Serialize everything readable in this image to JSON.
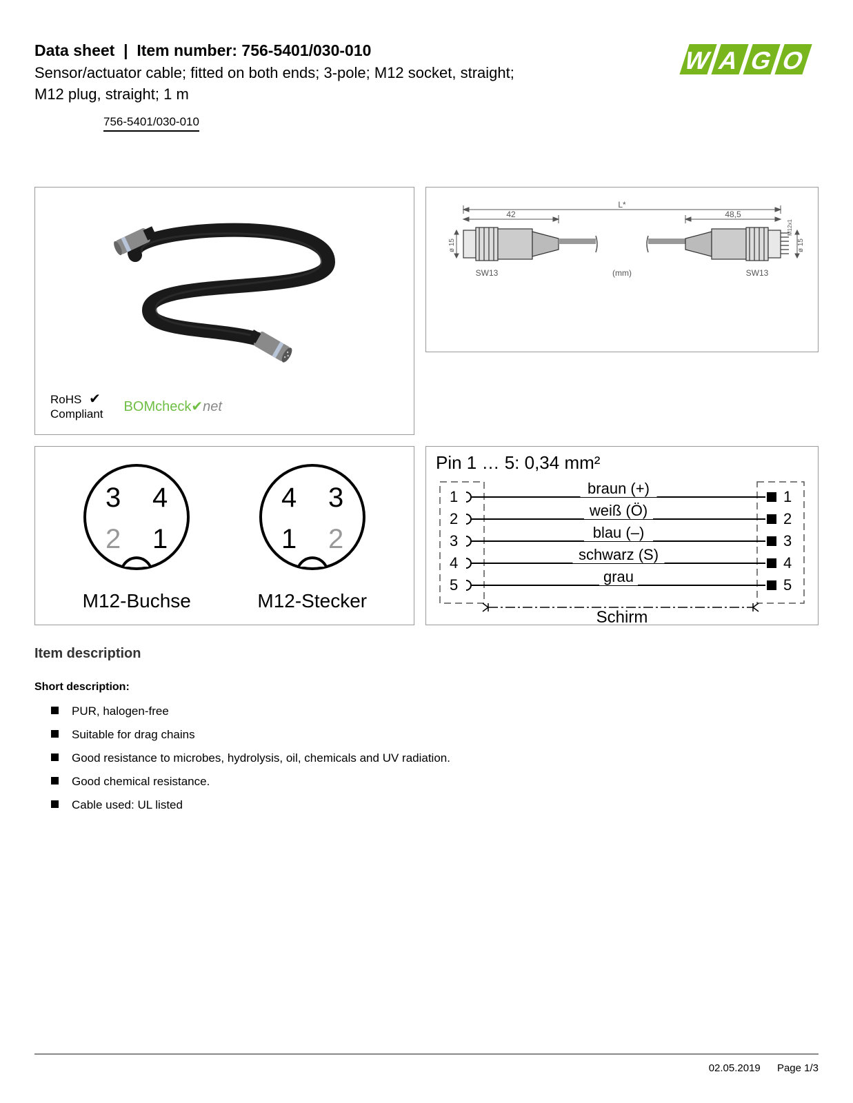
{
  "header": {
    "datasheet_label": "Data sheet",
    "item_label": "Item number:",
    "item_number": "756-5401/030-010",
    "subtitle_line1": "Sensor/actuator cable; fitted on both ends; 3-pole; M12 socket, straight;",
    "subtitle_line2": "M12 plug, straight; 1 m",
    "item_link": "756-5401/030-010"
  },
  "logo": {
    "text": "WAGO",
    "color": "#79b51c"
  },
  "compliance": {
    "rohs_line1": "RoHS",
    "rohs_line2": "Compliant",
    "bom_prefix": "BOM",
    "bom_mid": "check",
    "bom_suffix": "net"
  },
  "tech_drawing": {
    "dim_left": "42",
    "dim_center": "L*",
    "dim_right": "48,5",
    "dia_left": "ø 15",
    "dia_right": "ø 15",
    "sw_left": "SW13",
    "mm": "(mm)",
    "sw_right": "SW13",
    "thread": "M12x1"
  },
  "pinout": {
    "socket": {
      "pins": {
        "tl": "3",
        "tr": "4",
        "bl": "2",
        "br": "1"
      },
      "label": "M12-Buchse"
    },
    "plug": {
      "pins": {
        "tl": "4",
        "tr": "3",
        "bl": "1",
        "br": "2"
      },
      "label": "M12-Stecker"
    }
  },
  "wiring": {
    "title": "Pin 1 … 5: 0,34 mm²",
    "rows": [
      {
        "left": "1",
        "label": "braun (+)",
        "right": "1"
      },
      {
        "left": "2",
        "label": "weiß (Ö)",
        "right": "2"
      },
      {
        "left": "3",
        "label": "blau (–)",
        "right": "3"
      },
      {
        "left": "4",
        "label": "schwarz (S)",
        "right": "4"
      },
      {
        "left": "5",
        "label": "grau",
        "right": "5"
      }
    ],
    "shield": "Schirm"
  },
  "description": {
    "heading": "Item description",
    "short_label": "Short description:",
    "bullets": [
      "PUR, halogen-free",
      "Suitable for drag chains",
      "Good resistance to microbes, hydrolysis, oil, chemicals and UV radiation.",
      "Good chemical resistance.",
      "Cable used: UL listed"
    ]
  },
  "footer": {
    "date": "02.05.2019",
    "page": "Page 1/3"
  },
  "cable_photo": {
    "body_color": "#1a1a1a",
    "connector_color": "#8a8a8a",
    "ring_color": "#b8c4d8"
  }
}
